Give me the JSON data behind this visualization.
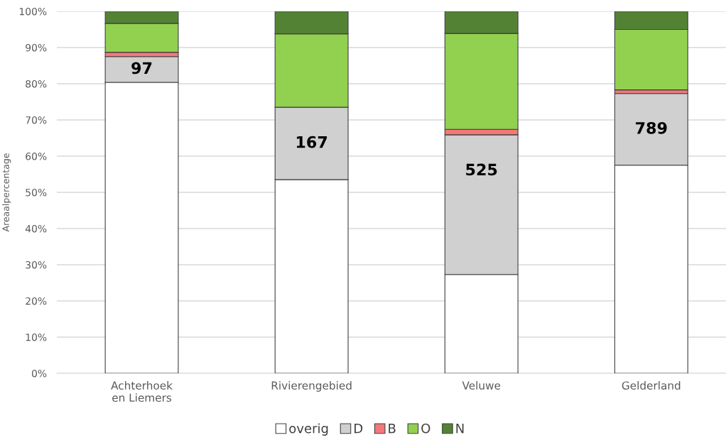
{
  "chart_data": {
    "type": "bar",
    "stacked": true,
    "ylabel": "Areaalpercentage",
    "categories": [
      "Achterhoek\nen Liemers",
      "Rivierengebied",
      "Veluwe",
      "Gelderland"
    ],
    "series": [
      {
        "name": "overig",
        "color": "#ffffff",
        "values": [
          80.4,
          53.5,
          27.3,
          57.5
        ]
      },
      {
        "name": "D",
        "color": "#d0d0d0",
        "values": [
          7.1,
          20.0,
          38.6,
          19.8
        ]
      },
      {
        "name": "B",
        "color": "#f4787a",
        "values": [
          1.2,
          null,
          1.5,
          1.0
        ]
      },
      {
        "name": "O",
        "color": "#92d050",
        "values": [
          8.0,
          20.3,
          26.5,
          16.7
        ]
      },
      {
        "name": "N",
        "color": "#548235",
        "values": [
          3.3,
          6.2,
          6.1,
          5.0
        ]
      }
    ],
    "annotations": [
      {
        "text": "97",
        "x": "Achterhoek\nen Liemers",
        "y": 87.5
      },
      {
        "text": "167",
        "x": "Rivierengebied",
        "y": 73.5
      },
      {
        "text": "525",
        "x": "Veluwe",
        "y": 65.9
      },
      {
        "text": "789",
        "x": "Gelderland",
        "y": 77.3
      }
    ],
    "ylim": [
      0,
      100
    ],
    "yticks": [
      {
        "value": 0,
        "label": "0%"
      },
      {
        "value": 10,
        "label": "10%"
      },
      {
        "value": 20,
        "label": "20%"
      },
      {
        "value": 30,
        "label": "30%"
      },
      {
        "value": 40,
        "label": "40%"
      },
      {
        "value": 50,
        "label": "50%"
      },
      {
        "value": 60,
        "label": "60%"
      },
      {
        "value": 70,
        "label": "70%"
      },
      {
        "value": 80,
        "label": "80%"
      },
      {
        "value": 90,
        "label": "90%"
      },
      {
        "value": 100,
        "label": "100%"
      }
    ],
    "grid": "y",
    "legend": "bottom"
  }
}
